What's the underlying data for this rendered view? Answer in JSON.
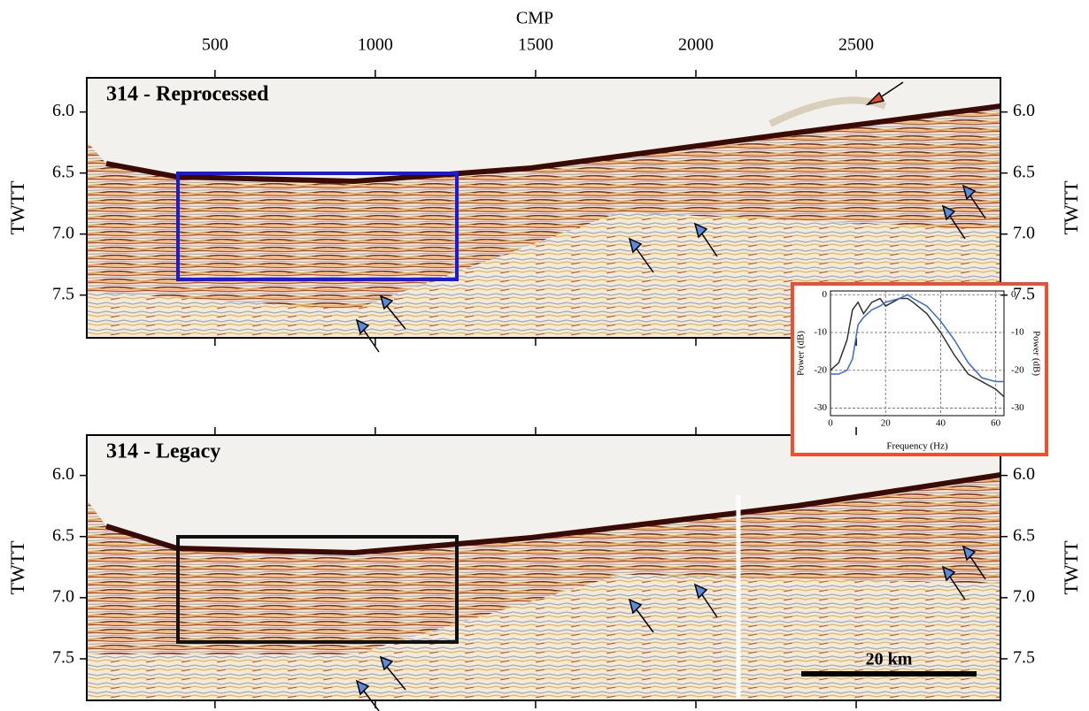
{
  "chart_data": [
    {
      "type": "seismic",
      "title": "314 - Reprocessed",
      "xlabel": "CMP",
      "ylabel": "TWTT",
      "xlim": [
        100,
        2950
      ],
      "xticks": [
        500,
        1000,
        1500,
        2000,
        2500
      ],
      "xtick_labels": true,
      "ylim": [
        5.72,
        7.85
      ],
      "yticks": [
        {
          "value": 6,
          "label": "6.0"
        },
        6.5,
        {
          "value": 7,
          "label": "7.0"
        },
        7.5
      ],
      "box_color": "#1a1adc"
    },
    {
      "type": "seismic",
      "title": "314 - Legacy",
      "ylabel": "TWTT",
      "xlim": [
        100,
        2950
      ],
      "xticks": [
        500,
        1000,
        1500,
        2000,
        2500
      ],
      "xtick_labels": false,
      "ylim": [
        5.67,
        7.84
      ],
      "yticks": [
        {
          "value": 6,
          "label": "6.0"
        },
        6.5,
        {
          "value": 7,
          "label": "7.0"
        },
        7.5
      ],
      "box_color": "#111111",
      "scale_bar": "20 km"
    },
    {
      "type": "line",
      "xlabel": "Frequency (Hz)",
      "ylabel": "Power (dB)",
      "grid": true,
      "xlim": [
        0,
        63
      ],
      "xticks": [
        0,
        20,
        40,
        60
      ],
      "ylim": [
        -32,
        1
      ],
      "yticks": [
        0,
        -10,
        -20,
        -30
      ],
      "x": [
        0,
        3,
        6,
        8,
        10,
        12,
        15,
        18,
        20,
        25,
        28,
        30,
        35,
        40,
        45,
        50,
        55,
        60,
        63
      ],
      "series": [
        {
          "color": "#333333",
          "values": [
            -20,
            -18,
            -12,
            -4,
            -2,
            -5,
            -2,
            -1,
            -3,
            -1,
            -1,
            -2,
            -5,
            -10,
            -16,
            -21,
            -23,
            -25,
            -27
          ]
        },
        {
          "color": "#3a66d8",
          "values": [
            -21,
            -21,
            -20,
            -17,
            -8,
            -6,
            -4,
            -3,
            -2,
            -1,
            0,
            -1,
            -3,
            -7,
            -12,
            -18,
            -22,
            -23,
            -23
          ]
        }
      ]
    }
  ]
}
